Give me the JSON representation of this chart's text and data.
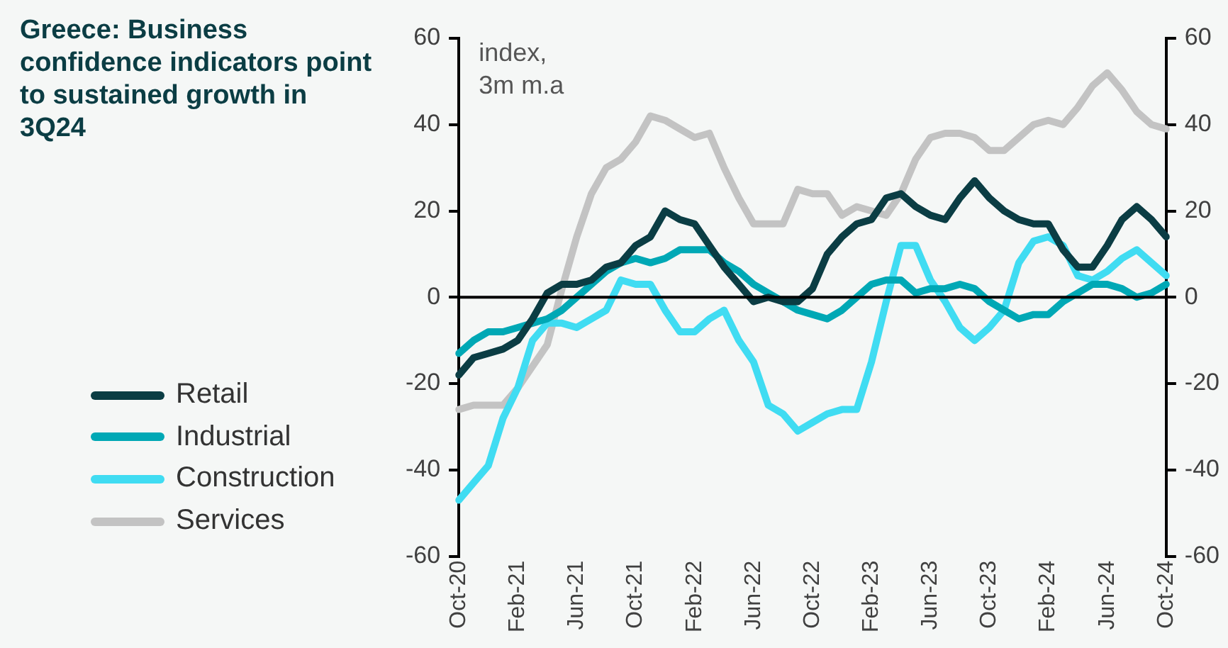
{
  "chart_data": {
    "type": "line",
    "title": "Greece: Business confidence indicators point to sustained growth in 3Q24",
    "annotations": [
      "index, 3m m.a"
    ],
    "categories": [
      "Oct-20",
      null,
      null,
      null,
      "Feb-21",
      null,
      null,
      null,
      "Jun-21",
      null,
      null,
      null,
      "Oct-21",
      null,
      null,
      null,
      "Feb-22",
      null,
      null,
      null,
      "Jun-22",
      null,
      null,
      null,
      "Oct-22",
      null,
      null,
      null,
      "Feb-23",
      null,
      null,
      null,
      "Jun-23",
      null,
      null,
      null,
      "Oct-23",
      null,
      null,
      null,
      "Feb-24",
      null,
      null,
      null,
      "Jun-24",
      null,
      null,
      null,
      "Oct-24"
    ],
    "series": [
      {
        "name": "Retail",
        "color": "#0b3d44",
        "values": [
          -18,
          -14,
          -13,
          -12,
          -10,
          -5,
          1,
          3,
          3,
          4,
          7,
          8,
          12,
          14,
          20,
          18,
          17,
          12,
          7,
          3,
          -1,
          0,
          -1,
          -1,
          2,
          10,
          14,
          17,
          18,
          23,
          24,
          21,
          19,
          18,
          23,
          27,
          23,
          20,
          18,
          17,
          17,
          11,
          7,
          7,
          12,
          18,
          21,
          18,
          14
        ]
      },
      {
        "name": "Industrial",
        "color": "#00a8b5",
        "values": [
          -13,
          -10,
          -8,
          -8,
          -7,
          -6,
          -5,
          -3,
          0,
          3,
          6,
          8,
          9,
          8,
          9,
          11,
          11,
          11,
          8,
          6,
          3,
          1,
          -1,
          -3,
          -4,
          -5,
          -3,
          0,
          3,
          4,
          4,
          1,
          2,
          2,
          3,
          2,
          -1,
          -3,
          -5,
          -4,
          -4,
          -1,
          1,
          3,
          3,
          2,
          0,
          1,
          3
        ]
      },
      {
        "name": "Construction",
        "color": "#40dcf2",
        "values": [
          -47,
          -43,
          -39,
          -28,
          -21,
          -10,
          -6,
          -6,
          -7,
          -5,
          -3,
          4,
          3,
          3,
          -3,
          -8,
          -8,
          -5,
          -3,
          -10,
          -15,
          -25,
          -27,
          -31,
          -29,
          -27,
          -26,
          -26,
          -15,
          -1,
          12,
          12,
          4,
          -1,
          -7,
          -10,
          -7,
          -3,
          8,
          13,
          14,
          12,
          5,
          4,
          6,
          9,
          11,
          8,
          5
        ]
      },
      {
        "name": "Services",
        "color": "#c3c3c3",
        "values": [
          -26,
          -25,
          -25,
          -25,
          -21,
          -16,
          -11,
          2,
          14,
          24,
          30,
          32,
          36,
          42,
          41,
          39,
          37,
          38,
          30,
          23,
          17,
          17,
          17,
          25,
          24,
          24,
          19,
          21,
          20,
          19,
          24,
          32,
          37,
          38,
          38,
          37,
          34,
          34,
          37,
          40,
          41,
          40,
          44,
          49,
          52,
          48,
          43,
          40,
          39
        ]
      }
    ],
    "ylim": [
      -60,
      60
    ],
    "yticks": [
      -60,
      -40,
      -20,
      0,
      20,
      40,
      60
    ],
    "y2lim": [
      -60,
      60
    ],
    "y2ticks": [
      -60,
      -40,
      -20,
      0,
      20,
      40,
      60
    ],
    "ref_lines": [
      {
        "axis": "y",
        "value": 0,
        "color": "#000000"
      }
    ],
    "grid": false,
    "legend": "left",
    "marker": "none",
    "line_style": "solid"
  }
}
